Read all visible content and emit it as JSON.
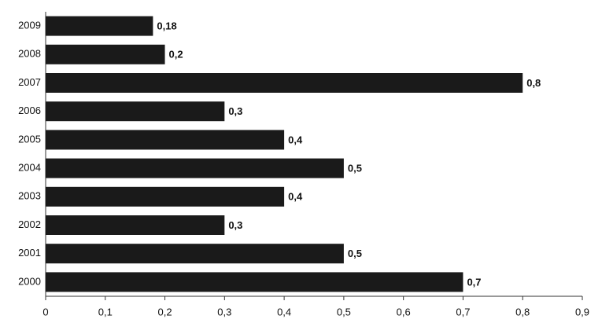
{
  "chart_data": {
    "type": "bar",
    "orientation": "horizontal",
    "categories": [
      "2000",
      "2001",
      "2002",
      "2003",
      "2004",
      "2005",
      "2006",
      "2007",
      "2008",
      "2009"
    ],
    "values": [
      0.7,
      0.5,
      0.3,
      0.4,
      0.5,
      0.4,
      0.3,
      0.8,
      0.2,
      0.18
    ],
    "value_labels": [
      "0,7",
      "0,5",
      "0,3",
      "0,4",
      "0,5",
      "0,4",
      "0,3",
      "0,8",
      "0,2",
      "0,18"
    ],
    "color": "#1a1a1a",
    "xlim": [
      0,
      0.9
    ],
    "xticks": [
      0,
      {
        "value": 0.1,
        "label": "0,1"
      },
      {
        "value": 0.2,
        "label": "0,2"
      },
      {
        "value": 0.3,
        "label": "0,3"
      },
      {
        "value": 0.4,
        "label": "0,4"
      },
      {
        "value": 0.5,
        "label": "0,5"
      },
      {
        "value": 0.6,
        "label": "0,6"
      },
      {
        "value": 0.7,
        "label": "0,7"
      },
      {
        "value": 0.8,
        "label": "0,8"
      },
      {
        "value": 0.9,
        "label": "0,9"
      }
    ]
  }
}
